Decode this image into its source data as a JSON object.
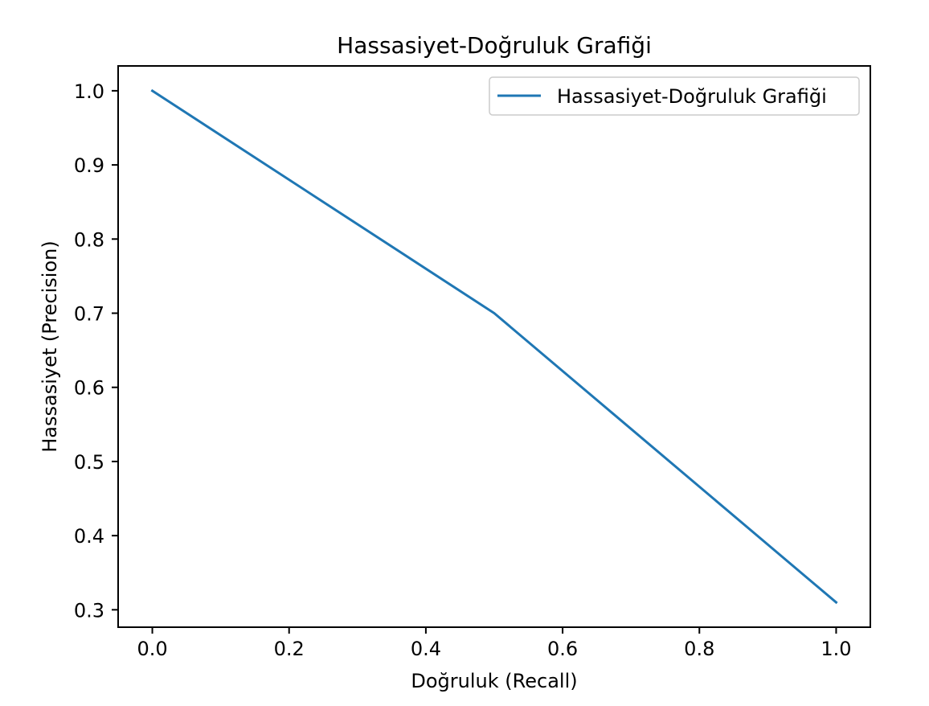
{
  "chart_data": {
    "type": "line",
    "title": "Hassasiyet-Doğruluk Grafiği",
    "xlabel": "Doğruluk (Recall)",
    "ylabel": "Hassasiyet (Precision)",
    "xlim": [
      -0.05,
      1.05
    ],
    "ylim": [
      0.2765,
      1.0335
    ],
    "xticks": [
      0.0,
      0.2,
      0.4,
      0.6,
      0.8,
      1.0
    ],
    "xtick_labels": [
      "0.0",
      "0.2",
      "0.4",
      "0.6",
      "0.8",
      "1.0"
    ],
    "yticks": [
      0.3,
      0.4,
      0.5,
      0.6,
      0.7,
      0.8,
      0.9,
      1.0
    ],
    "ytick_labels": [
      "0.3",
      "0.4",
      "0.5",
      "0.6",
      "0.7",
      "0.8",
      "0.9",
      "1.0"
    ],
    "grid": false,
    "legend_position": "top-right",
    "series": [
      {
        "name": "Hassasiyet-Doğruluk Grafiği",
        "color": "#1f77b4",
        "x": [
          0.0,
          0.5,
          1.0
        ],
        "y": [
          1.0,
          0.7,
          0.31
        ]
      }
    ]
  }
}
